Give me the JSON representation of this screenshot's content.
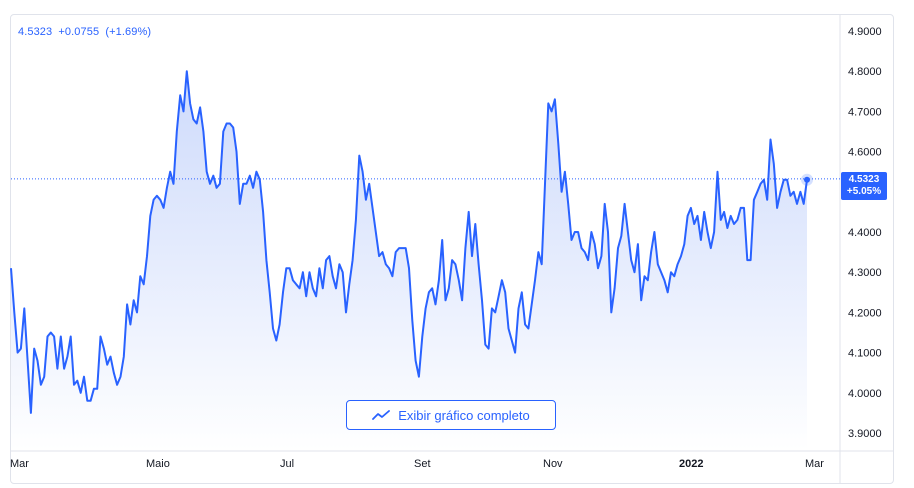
{
  "legend": {
    "price": "4.5323",
    "change": "+0.0755",
    "change_pct": "(+1.69%)"
  },
  "badge": {
    "price": "4.5323",
    "pct": "+5.05%"
  },
  "button": {
    "label": "Exibir gráfico completo",
    "icon": "chart-line-icon"
  },
  "colors": {
    "line": "#2962ff",
    "fill_top": "#c9d7fb",
    "fill_bottom": "#ffffff",
    "text": "#131722",
    "grid": "#e0e3eb"
  },
  "chart_data": {
    "type": "area",
    "ylim": [
      3.87,
      4.93
    ],
    "y_ticks": [
      "4.9000",
      "4.8000",
      "4.7000",
      "4.6000",
      "4.5000",
      "4.4000",
      "4.3000",
      "4.2000",
      "4.1000",
      "4.0000",
      "3.9000"
    ],
    "x_ticks": [
      "Mar",
      "Maio",
      "Jul",
      "Set",
      "Nov",
      "2022",
      "Mar"
    ],
    "current_value": 4.5323,
    "series": [
      {
        "values": [
          4.31,
          4.2,
          4.1,
          4.11,
          4.21,
          4.08,
          3.95,
          4.11,
          4.08,
          4.02,
          4.04,
          4.14,
          4.15,
          4.14,
          4.06,
          4.14,
          4.06,
          4.09,
          4.14,
          4.02,
          4.03,
          4.0,
          4.04,
          3.98,
          3.98,
          4.01,
          4.01,
          4.14,
          4.11,
          4.07,
          4.09,
          4.05,
          4.02,
          4.04,
          4.09,
          4.22,
          4.17,
          4.23,
          4.2,
          4.29,
          4.27,
          4.34,
          4.44,
          4.48,
          4.49,
          4.48,
          4.46,
          4.51,
          4.55,
          4.52,
          4.65,
          4.74,
          4.7,
          4.8,
          4.72,
          4.68,
          4.67,
          4.71,
          4.65,
          4.55,
          4.52,
          4.54,
          4.51,
          4.52,
          4.65,
          4.67,
          4.67,
          4.66,
          4.6,
          4.47,
          4.52,
          4.52,
          4.54,
          4.51,
          4.55,
          4.53,
          4.45,
          4.33,
          4.25,
          4.16,
          4.13,
          4.17,
          4.25,
          4.31,
          4.31,
          4.28,
          4.27,
          4.26,
          4.3,
          4.24,
          4.3,
          4.26,
          4.24,
          4.31,
          4.26,
          4.33,
          4.34,
          4.29,
          4.26,
          4.32,
          4.3,
          4.2,
          4.27,
          4.33,
          4.43,
          4.59,
          4.55,
          4.48,
          4.52,
          4.46,
          4.4,
          4.34,
          4.35,
          4.32,
          4.31,
          4.29,
          4.35,
          4.36,
          4.36,
          4.36,
          4.31,
          4.18,
          4.08,
          4.04,
          4.14,
          4.21,
          4.25,
          4.26,
          4.22,
          4.28,
          4.38,
          4.23,
          4.26,
          4.33,
          4.32,
          4.28,
          4.23,
          4.36,
          4.45,
          4.34,
          4.42,
          4.32,
          4.23,
          4.12,
          4.11,
          4.21,
          4.2,
          4.24,
          4.28,
          4.25,
          4.16,
          4.13,
          4.1,
          4.21,
          4.25,
          4.17,
          4.16,
          4.22,
          4.28,
          4.35,
          4.32,
          4.52,
          4.72,
          4.7,
          4.73,
          4.62,
          4.5,
          4.55,
          4.47,
          4.38,
          4.4,
          4.4,
          4.36,
          4.35,
          4.33,
          4.4,
          4.37,
          4.31,
          4.34,
          4.47,
          4.4,
          4.2,
          4.26,
          4.36,
          4.39,
          4.47,
          4.4,
          4.33,
          4.3,
          4.37,
          4.23,
          4.29,
          4.28,
          4.35,
          4.4,
          4.32,
          4.3,
          4.28,
          4.25,
          4.3,
          4.29,
          4.32,
          4.34,
          4.37,
          4.44,
          4.46,
          4.42,
          4.44,
          4.38,
          4.45,
          4.4,
          4.36,
          4.4,
          4.55,
          4.43,
          4.45,
          4.41,
          4.44,
          4.42,
          4.43,
          4.46,
          4.46,
          4.33,
          4.33,
          4.48,
          4.5,
          4.52,
          4.53,
          4.48,
          4.63,
          4.57,
          4.46,
          4.5,
          4.53,
          4.53,
          4.49,
          4.5,
          4.47,
          4.5,
          4.47,
          4.53
        ]
      }
    ]
  }
}
